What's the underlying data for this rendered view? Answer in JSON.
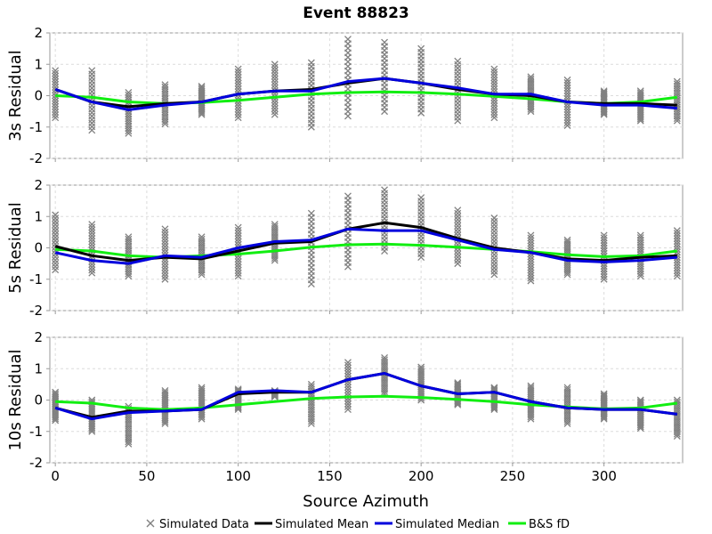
{
  "chart_data": {
    "type": "line",
    "title": "Event 88823",
    "xlabel": "Source Azimuth",
    "xlim": [
      -3,
      343
    ],
    "xticks": [
      0,
      50,
      100,
      150,
      200,
      250,
      300
    ],
    "ylim": [
      -2,
      2
    ],
    "yticks": [
      -2,
      -1,
      0,
      1,
      2
    ],
    "grid": true,
    "legend_position": "bottom",
    "legend": [
      {
        "label": "Simulated Data",
        "marker": "x",
        "color": "#808080"
      },
      {
        "label": "Simulated Mean",
        "color": "#000000"
      },
      {
        "label": "Simulated Median",
        "color": "#0000dd"
      },
      {
        "label": "B&S fD",
        "color": "#11ee11"
      }
    ],
    "panels": [
      {
        "ylabel": "3s Residual",
        "x": [
          0,
          20,
          40,
          60,
          80,
          100,
          120,
          140,
          160,
          180,
          200,
          220,
          240,
          260,
          280,
          300,
          320,
          340
        ],
        "scatter_ranges": [
          [
            -0.7,
            0.8
          ],
          [
            -1.1,
            0.8
          ],
          [
            -1.2,
            0.1
          ],
          [
            -0.9,
            0.35
          ],
          [
            -0.6,
            0.3
          ],
          [
            -0.7,
            0.85
          ],
          [
            -0.6,
            1.0
          ],
          [
            -1.0,
            1.05
          ],
          [
            -0.65,
            1.8
          ],
          [
            -0.5,
            1.7
          ],
          [
            -0.55,
            1.5
          ],
          [
            -0.8,
            1.1
          ],
          [
            -0.7,
            0.85
          ],
          [
            -0.5,
            0.6
          ],
          [
            -0.95,
            0.5
          ],
          [
            -0.6,
            0.15
          ],
          [
            -0.8,
            0.15
          ],
          [
            -0.8,
            0.45
          ]
        ],
        "series": [
          {
            "name": "Simulated Mean",
            "values": [
              0.2,
              -0.2,
              -0.35,
              -0.25,
              -0.2,
              0.05,
              0.15,
              0.2,
              0.4,
              0.55,
              0.4,
              0.2,
              0.05,
              0.0,
              -0.2,
              -0.25,
              -0.25,
              -0.3
            ]
          },
          {
            "name": "Simulated Median",
            "values": [
              0.2,
              -0.2,
              -0.45,
              -0.3,
              -0.2,
              0.05,
              0.15,
              0.15,
              0.45,
              0.55,
              0.4,
              0.25,
              0.05,
              0.05,
              -0.2,
              -0.3,
              -0.3,
              -0.4
            ]
          },
          {
            "name": "B&S fD",
            "values": [
              0.0,
              -0.05,
              -0.2,
              -0.25,
              -0.22,
              -0.15,
              -0.05,
              0.05,
              0.1,
              0.12,
              0.1,
              0.05,
              -0.02,
              -0.1,
              -0.2,
              -0.25,
              -0.2,
              -0.05
            ]
          }
        ]
      },
      {
        "ylabel": "5s Residual",
        "x": [
          0,
          20,
          40,
          60,
          80,
          100,
          120,
          140,
          160,
          180,
          200,
          220,
          240,
          260,
          280,
          300,
          320,
          340
        ],
        "scatter_ranges": [
          [
            -0.7,
            1.05
          ],
          [
            -0.8,
            0.75
          ],
          [
            -0.9,
            0.35
          ],
          [
            -1.0,
            0.6
          ],
          [
            -0.85,
            0.35
          ],
          [
            -0.9,
            0.65
          ],
          [
            -0.4,
            0.75
          ],
          [
            -1.15,
            1.1
          ],
          [
            -0.6,
            1.65
          ],
          [
            -0.1,
            1.85
          ],
          [
            -0.3,
            1.6
          ],
          [
            -0.5,
            1.2
          ],
          [
            -0.85,
            0.95
          ],
          [
            -1.05,
            0.4
          ],
          [
            -0.85,
            0.25
          ],
          [
            -1.0,
            0.4
          ],
          [
            -0.9,
            0.4
          ],
          [
            -0.9,
            0.55
          ]
        ],
        "series": [
          {
            "name": "Simulated Mean",
            "values": [
              0.05,
              -0.25,
              -0.4,
              -0.3,
              -0.35,
              -0.1,
              0.15,
              0.2,
              0.6,
              0.8,
              0.65,
              0.3,
              0.0,
              -0.15,
              -0.35,
              -0.4,
              -0.3,
              -0.25
            ]
          },
          {
            "name": "Simulated Median",
            "values": [
              -0.15,
              -0.4,
              -0.5,
              -0.25,
              -0.3,
              0.0,
              0.2,
              0.25,
              0.6,
              0.55,
              0.55,
              0.25,
              -0.05,
              -0.15,
              -0.4,
              -0.45,
              -0.4,
              -0.3
            ]
          },
          {
            "name": "B&S fD",
            "values": [
              -0.05,
              -0.1,
              -0.25,
              -0.3,
              -0.25,
              -0.2,
              -0.1,
              0.02,
              0.1,
              0.12,
              0.08,
              0.02,
              -0.05,
              -0.12,
              -0.22,
              -0.28,
              -0.25,
              -0.1
            ]
          }
        ]
      },
      {
        "ylabel": "10s Residual",
        "x": [
          0,
          20,
          40,
          60,
          80,
          100,
          120,
          140,
          160,
          180,
          200,
          220,
          240,
          260,
          280,
          300,
          320,
          340
        ],
        "scatter_ranges": [
          [
            -0.65,
            0.25
          ],
          [
            -1.0,
            0.0
          ],
          [
            -1.4,
            -0.2
          ],
          [
            -0.75,
            0.3
          ],
          [
            -0.6,
            0.4
          ],
          [
            -0.3,
            0.35
          ],
          [
            0.1,
            0.3
          ],
          [
            -0.75,
            0.5
          ],
          [
            -0.3,
            1.2
          ],
          [
            0.2,
            1.35
          ],
          [
            0.0,
            1.05
          ],
          [
            -0.15,
            0.55
          ],
          [
            -0.3,
            0.4
          ],
          [
            -0.6,
            0.45
          ],
          [
            -0.75,
            0.4
          ],
          [
            -0.6,
            0.2
          ],
          [
            -0.9,
            0.0
          ],
          [
            -1.15,
            0.0
          ]
        ],
        "series": [
          {
            "name": "Simulated Mean",
            "values": [
              -0.25,
              -0.55,
              -0.35,
              -0.35,
              -0.3,
              0.2,
              0.25,
              0.25,
              0.65,
              0.85,
              0.45,
              0.2,
              0.25,
              -0.05,
              -0.25,
              -0.3,
              -0.3,
              -0.45
            ]
          },
          {
            "name": "Simulated Median",
            "values": [
              -0.25,
              -0.6,
              -0.4,
              -0.35,
              -0.3,
              0.25,
              0.3,
              0.25,
              0.65,
              0.85,
              0.45,
              0.2,
              0.25,
              -0.05,
              -0.25,
              -0.3,
              -0.3,
              -0.45
            ]
          },
          {
            "name": "B&S fD",
            "values": [
              -0.05,
              -0.1,
              -0.25,
              -0.3,
              -0.25,
              -0.15,
              -0.05,
              0.05,
              0.1,
              0.12,
              0.08,
              0.02,
              -0.05,
              -0.15,
              -0.22,
              -0.28,
              -0.25,
              -0.1
            ]
          }
        ]
      }
    ]
  }
}
